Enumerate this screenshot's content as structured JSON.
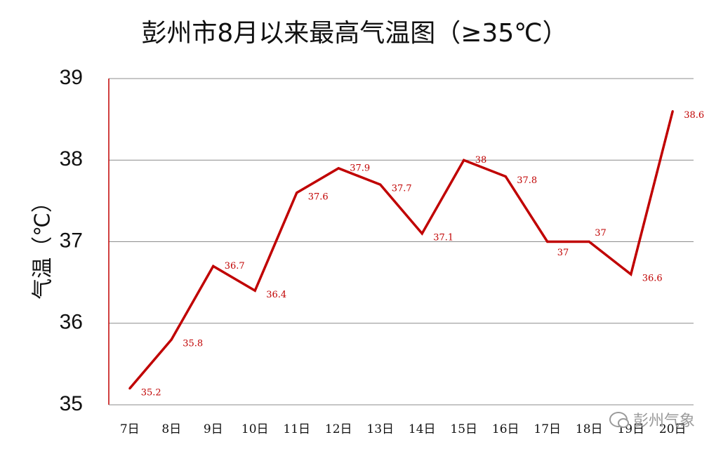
{
  "chart_data": {
    "type": "line",
    "title": "彭州市8月以来最高气温图（≥35℃）",
    "ylabel": "气温（℃）",
    "xlabel": "",
    "categories": [
      "7日",
      "8日",
      "9日",
      "10日",
      "11日",
      "12日",
      "13日",
      "14日",
      "15日",
      "16日",
      "17日",
      "18日",
      "19日",
      "20日"
    ],
    "series": [
      {
        "values": [
          35.2,
          35.8,
          36.7,
          36.4,
          37.6,
          37.9,
          37.7,
          37.1,
          38.0,
          37.8,
          37.0,
          37.0,
          36.6,
          38.6
        ],
        "labels": [
          "35.2",
          "35.8",
          "36.7",
          "36.4",
          "37.6",
          "37.9",
          "37.7",
          "37.1",
          "38",
          "37.8",
          "37",
          "37",
          "36.6",
          "38.6"
        ]
      }
    ],
    "ylim": [
      35,
      39
    ],
    "yticks": [
      35,
      36,
      37,
      38,
      39
    ],
    "grid": true,
    "legend": "none",
    "colors": {
      "line": "#c00000",
      "grid": "#8c8c8c",
      "axis": "#c00000"
    }
  },
  "watermark": {
    "text": "彭州气象"
  }
}
